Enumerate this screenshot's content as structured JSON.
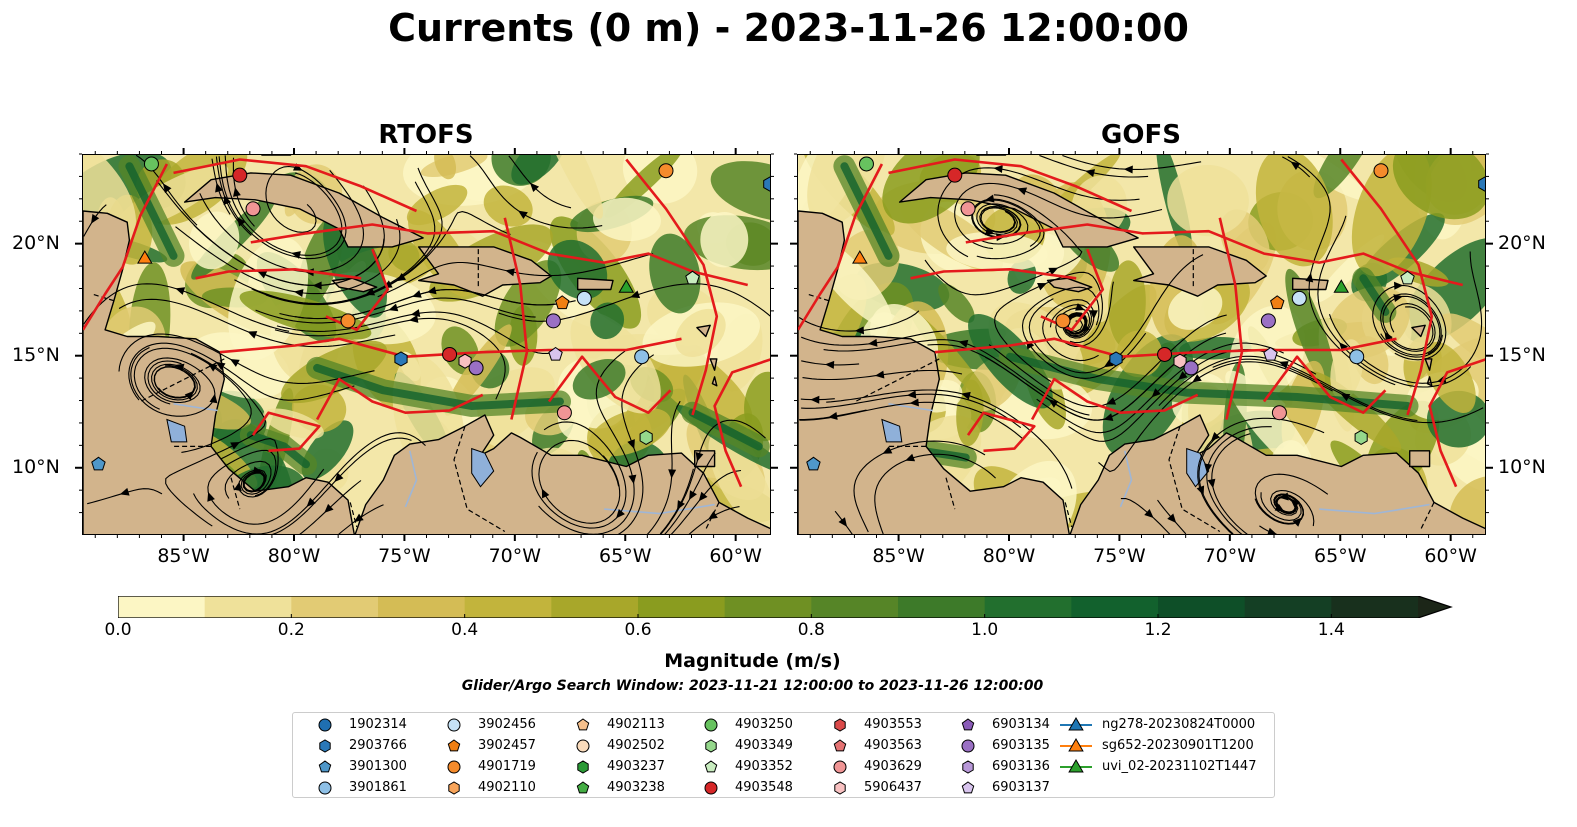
{
  "title": "Currents (0 m) - 2023-11-26 12:00:00",
  "panels": [
    {
      "title": "RTOFS",
      "seed": 11
    },
    {
      "title": "GOFS",
      "seed": 29
    }
  ],
  "axes": {
    "lon_ticks": [
      "85°W",
      "80°W",
      "75°W",
      "70°W",
      "65°W",
      "60°W"
    ],
    "lon_values": [
      -85,
      -80,
      -75,
      -70,
      -65,
      -60
    ],
    "lat_ticks": [
      "20°N",
      "15°N",
      "10°N"
    ],
    "lat_values": [
      20,
      15,
      10
    ],
    "lon_range": [
      -89.6,
      -58.4
    ],
    "lat_range": [
      7.0,
      24.0
    ]
  },
  "colorbar": {
    "label": "Magnitude (m/s)",
    "ticks": [
      "0.0",
      "0.2",
      "0.4",
      "0.6",
      "0.8",
      "1.0",
      "1.2",
      "1.4"
    ],
    "tick_values": [
      0.0,
      0.2,
      0.4,
      0.6,
      0.8,
      1.0,
      1.2,
      1.4
    ],
    "range": [
      0.0,
      1.5
    ],
    "extend": "max",
    "colors": [
      "#fcf6c4",
      "#efe19a",
      "#e2cb74",
      "#d4bc55",
      "#c2b43c",
      "#a8a72a",
      "#8a9c1f",
      "#6f9023",
      "#568527",
      "#3d7a29",
      "#226f2e",
      "#12612d",
      "#0e4f28",
      "#143f24",
      "#18301d",
      "#1c2618"
    ]
  },
  "search_window": "Glider/Argo Search Window: 2023-11-21 12:00:00 to 2023-11-26 12:00:00",
  "legend": [
    {
      "label": "1902314",
      "shape": "circle",
      "color": "#1f6fb0"
    },
    {
      "label": "2903766",
      "shape": "hexagon",
      "color": "#2a78b8"
    },
    {
      "label": "3901300",
      "shape": "pentagon",
      "color": "#4f97c9"
    },
    {
      "label": "3901861",
      "shape": "circle",
      "color": "#8ec0e6"
    },
    {
      "label": "3902456",
      "shape": "circle",
      "color": "#c6e2f6"
    },
    {
      "label": "3902457",
      "shape": "pentagon",
      "color": "#f07f13"
    },
    {
      "label": "4901719",
      "shape": "circle",
      "color": "#f58b2c"
    },
    {
      "label": "4902110",
      "shape": "hexagon",
      "color": "#f7a45a"
    },
    {
      "label": "4902113",
      "shape": "pentagon",
      "color": "#f6c08c"
    },
    {
      "label": "4902502",
      "shape": "circle",
      "color": "#fbdcbc"
    },
    {
      "label": "4903237",
      "shape": "hexagon",
      "color": "#2b9a36"
    },
    {
      "label": "4903238",
      "shape": "pentagon",
      "color": "#44ad44"
    },
    {
      "label": "4903250",
      "shape": "circle",
      "color": "#67c25f"
    },
    {
      "label": "4903349",
      "shape": "hexagon",
      "color": "#95d88c"
    },
    {
      "label": "4903352",
      "shape": "pentagon",
      "color": "#c8ecbf"
    },
    {
      "label": "4903548",
      "shape": "circle",
      "color": "#d62728"
    },
    {
      "label": "4903553",
      "shape": "hexagon",
      "color": "#db4a4a"
    },
    {
      "label": "4903563",
      "shape": "pentagon",
      "color": "#e57373"
    },
    {
      "label": "4903629",
      "shape": "circle",
      "color": "#f09595"
    },
    {
      "label": "5906437",
      "shape": "hexagon",
      "color": "#f8c1c1"
    },
    {
      "label": "6903134",
      "shape": "pentagon",
      "color": "#8a5bb8"
    },
    {
      "label": "6903135",
      "shape": "circle",
      "color": "#9a70c4"
    },
    {
      "label": "6903136",
      "shape": "hexagon",
      "color": "#b898d8"
    },
    {
      "label": "6903137",
      "shape": "pentagon",
      "color": "#d8c4ee"
    },
    {
      "label": "ng278-20230824T0000",
      "shape": "triangle-line",
      "color": "#1f77b4"
    },
    {
      "label": "sg652-20230901T1200",
      "shape": "triangle-line",
      "color": "#ff7f0e"
    },
    {
      "label": "uvi_02-20231102T1447",
      "shape": "triangle-line",
      "color": "#2ca02c"
    }
  ]
}
